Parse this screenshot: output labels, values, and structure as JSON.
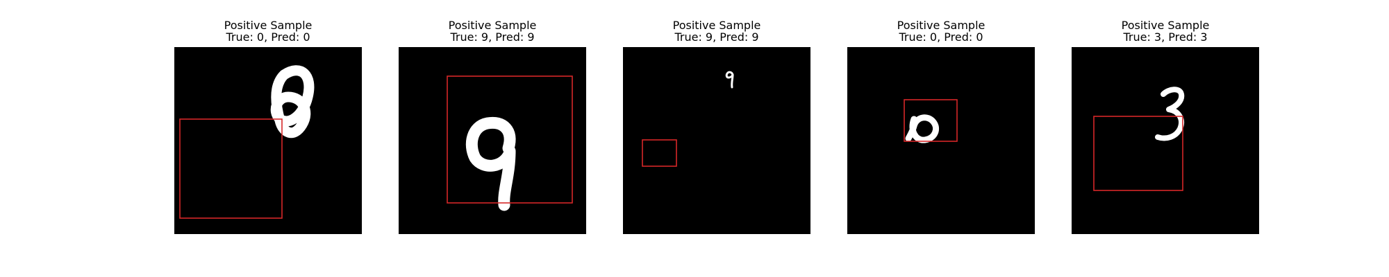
{
  "colors": {
    "background": "#ffffff",
    "image_background": "#000000",
    "digit": "#ffffff",
    "box": "#d62728"
  },
  "panels": [
    {
      "title": "Positive Sample",
      "subtitle": "True: 0, Pred: 0",
      "digit": "0"
    },
    {
      "title": "Positive Sample",
      "subtitle": "True: 9, Pred: 9",
      "digit": "9"
    },
    {
      "title": "Positive Sample",
      "subtitle": "True: 9, Pred: 9",
      "digit": "9"
    },
    {
      "title": "Positive Sample",
      "subtitle": "True: 0, Pred: 0",
      "digit": "0"
    },
    {
      "title": "Positive Sample",
      "subtitle": "True: 3, Pred: 3",
      "digit": "3"
    }
  ]
}
